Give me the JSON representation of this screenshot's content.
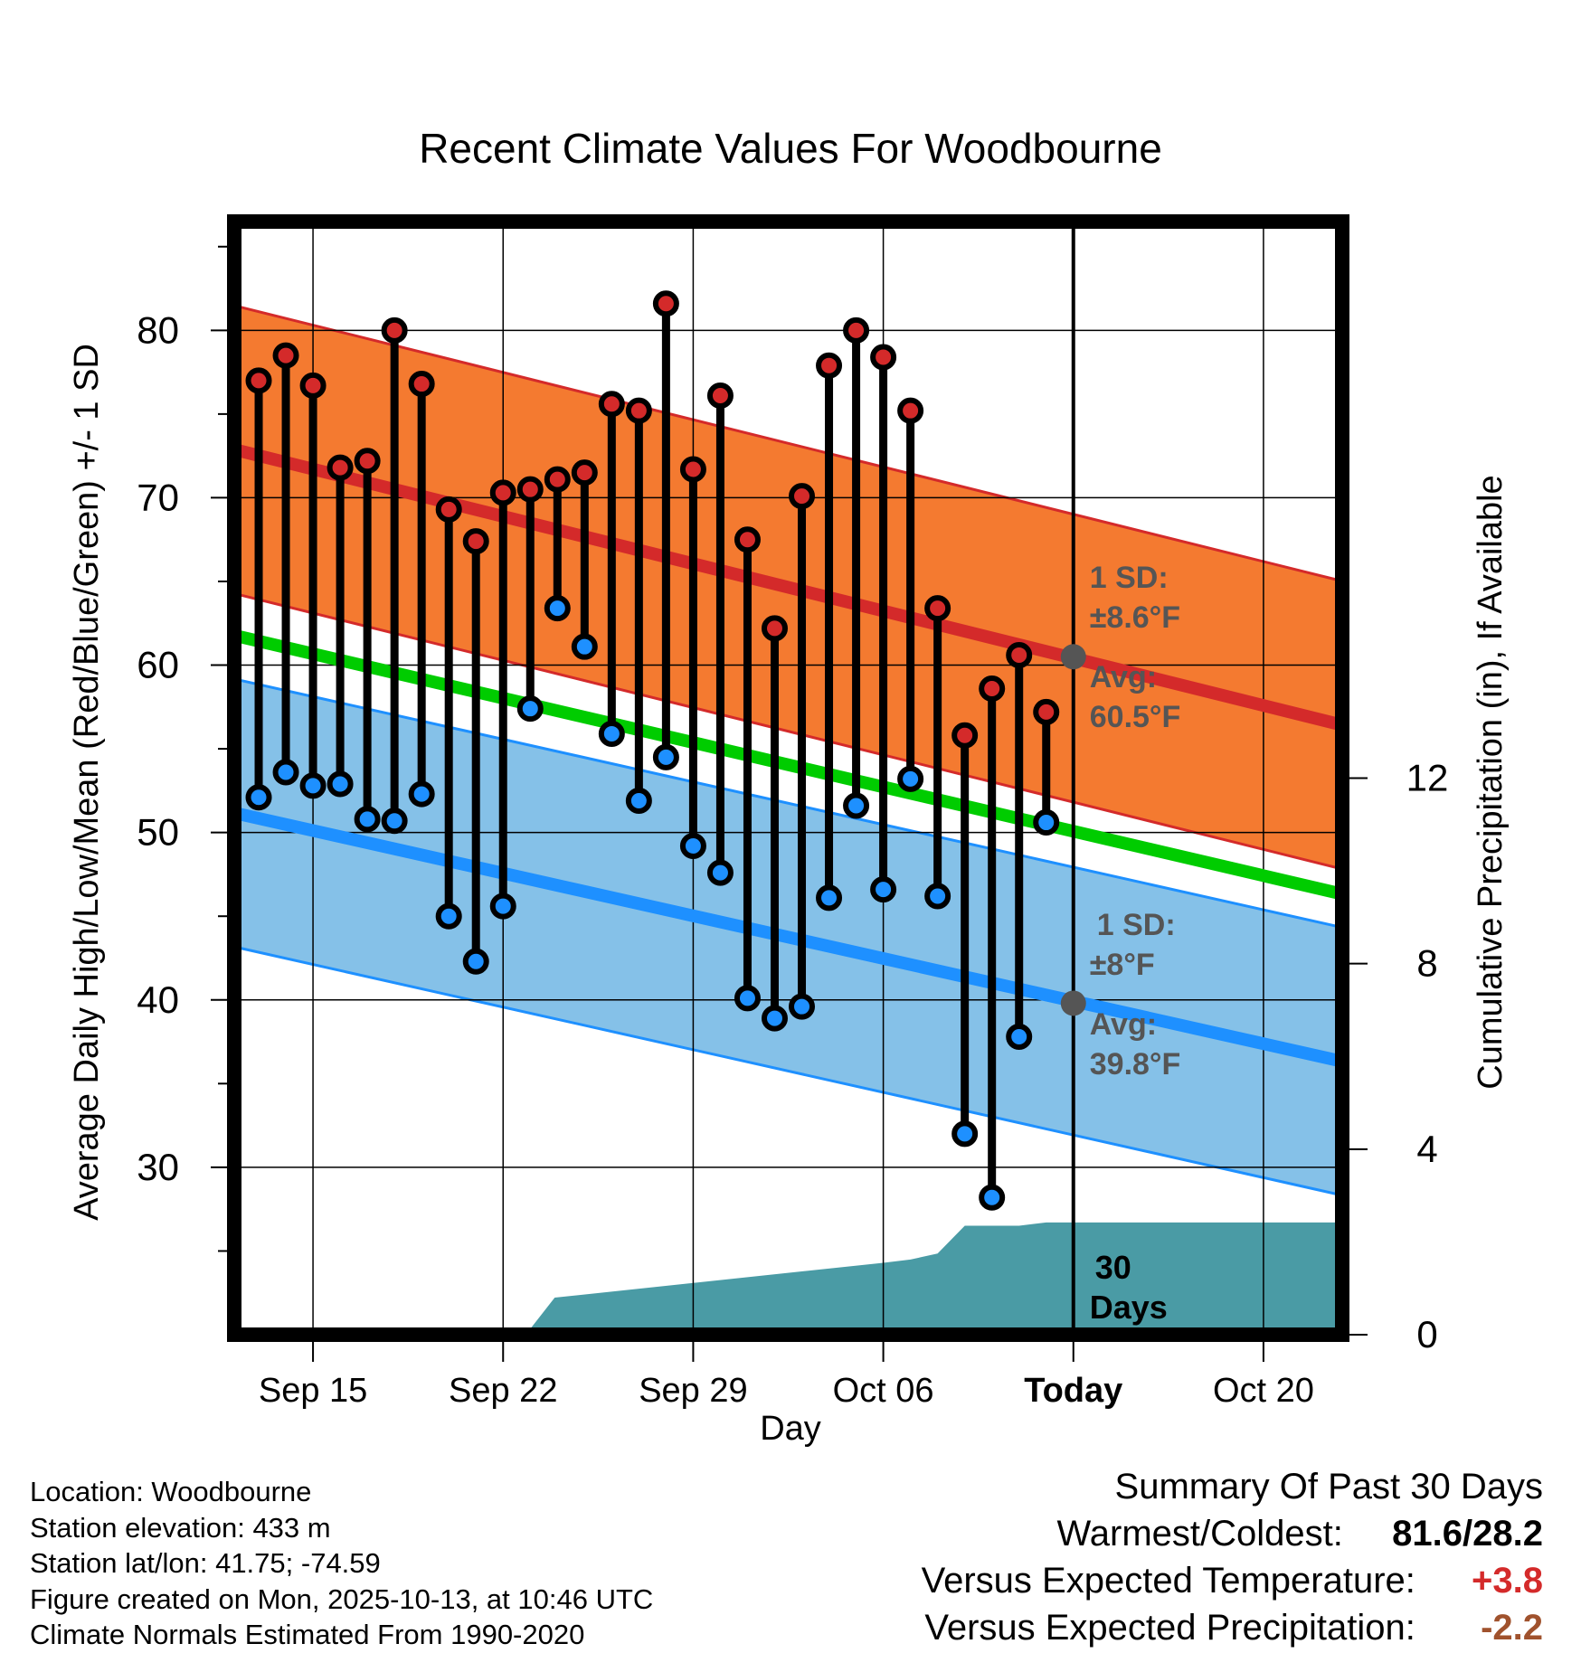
{
  "chart_data": {
    "type": "line",
    "title": "Recent Climate Values For Woodbourne",
    "xlabel": "Day",
    "ylabel": "Average Daily High/Low/Mean (Red/Blue/Green) +/- 1 SD",
    "y2label": "Cumulative Precipitation (in), If Available",
    "ylim": [
      20,
      86.5
    ],
    "y2lim": [
      0,
      24
    ],
    "xlim": [
      -2.9,
      37.9
    ],
    "yticks": [
      "30",
      "40",
      "50",
      "60",
      "70",
      "80"
    ],
    "y2ticks": [
      "0",
      "4",
      "8",
      "12"
    ],
    "y2tick_values": [
      0,
      4,
      8,
      12
    ],
    "xticks": [
      {
        "x": 0,
        "label": "Sep 15"
      },
      {
        "x": 7,
        "label": "Sep 22"
      },
      {
        "x": 14,
        "label": "Sep 29"
      },
      {
        "x": 21,
        "label": "Oct 06"
      },
      {
        "x": 28,
        "label": "Today"
      },
      {
        "x": 35,
        "label": "Oct 20"
      }
    ],
    "today_x": 28,
    "normals": {
      "high_mean_start": 72.8,
      "high_mean_end": 56.5,
      "high_sd": 8.6,
      "mean_start": 61.7,
      "mean_end": 46.4,
      "low_mean_start": 51.1,
      "low_mean_end": 36.4,
      "low_sd": 8.0,
      "x_start": -2.7,
      "x_end": 37.7
    },
    "days_x": [
      -2,
      -1,
      0,
      1,
      2,
      3,
      4,
      5,
      6,
      7,
      8,
      9,
      10,
      11,
      12,
      13,
      14,
      15,
      16,
      17,
      18,
      19,
      20,
      21,
      22,
      23,
      24,
      25,
      26,
      27
    ],
    "series": [
      {
        "name": "Daily High",
        "color": "#d42a2a",
        "values": [
          77.0,
          78.5,
          76.7,
          71.8,
          72.2,
          80.0,
          76.8,
          69.3,
          67.4,
          70.3,
          70.5,
          71.1,
          71.5,
          75.6,
          75.2,
          81.6,
          71.7,
          76.1,
          67.5,
          62.2,
          70.1,
          77.9,
          80.0,
          78.4,
          75.2,
          63.4,
          55.8,
          58.6,
          60.6,
          57.2
        ]
      },
      {
        "name": "Daily Low",
        "color": "#1e90ff",
        "values": [
          52.1,
          53.6,
          52.8,
          52.9,
          50.8,
          50.7,
          52.3,
          45.0,
          42.3,
          45.6,
          57.4,
          63.4,
          61.1,
          55.9,
          51.9,
          54.5,
          49.2,
          47.6,
          40.1,
          38.9,
          39.6,
          46.1,
          51.6,
          46.6,
          53.2,
          46.2,
          32.0,
          28.2,
          37.8,
          50.6
        ]
      }
    ],
    "precipitation": {
      "x": [
        -2.7,
        5.9,
        6.9,
        7.9,
        8.9,
        21.0,
        22.0,
        23.0,
        24.0,
        25.0,
        26.0,
        27.0,
        37.7
      ],
      "values": [
        0,
        0,
        0,
        0.05,
        0.8,
        1.55,
        1.62,
        1.75,
        2.35,
        2.35,
        2.35,
        2.42,
        2.42
      ]
    },
    "annotations": {
      "high_sd_label": "1 SD:",
      "high_sd_value": "±8.6°F",
      "high_avg_label": "Avg:",
      "high_avg_value": "60.5°F",
      "low_sd_label": "1 SD:",
      "low_sd_value": "±8°F",
      "low_avg_label": "Avg:",
      "low_avg_value": "39.8°F",
      "today_high_avg": 60.5,
      "today_low_avg": 39.8,
      "days_count": "30",
      "days_word": "Days"
    },
    "colors": {
      "high_band": "#f47a30",
      "high_edge": "#d42a2a",
      "high_line": "#d42a2a",
      "mean_line": "#00cc00",
      "low_band": "#85c1e8",
      "low_edge": "#1e90ff",
      "low_line": "#1e90ff",
      "precip": "#4a9ba5",
      "annotation": "#555555"
    }
  },
  "footer": {
    "location": "Location: Woodbourne",
    "elevation": "Station elevation: 433 m",
    "latlon": "Station lat/lon: 41.75; -74.59",
    "created": "Figure created on Mon, 2025-10-13, at 10:46 UTC",
    "normals": "Climate Normals Estimated From 1990-2020"
  },
  "summary": {
    "title": "Summary Of Past 30 Days",
    "warm_cold_label": "Warmest/Coldest:",
    "warm_cold_value": "81.6/28.2",
    "temp_label": "Versus Expected Temperature:",
    "temp_value": "+3.8",
    "temp_color": "#d42a2a",
    "precip_label": "Versus Expected Precipitation:",
    "precip_value": "-2.2",
    "precip_color": "#a0522d"
  }
}
